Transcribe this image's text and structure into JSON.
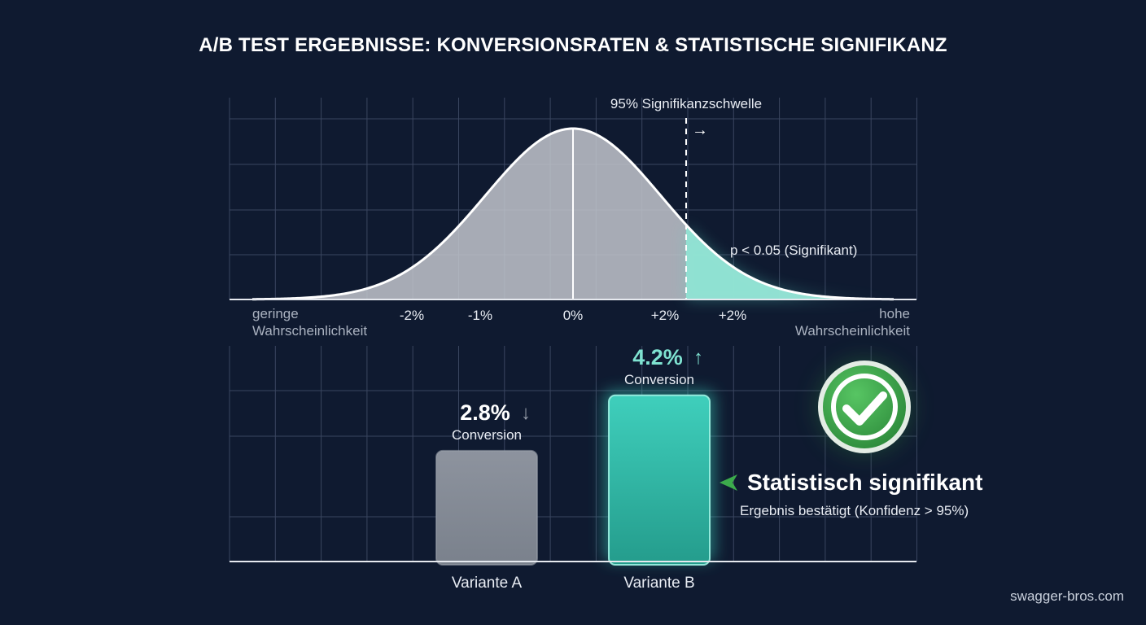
{
  "title": "A/B TEST ERGEBNISSE: KONVERSIONSRATEN & STATISTISCHE SIGNIFIKANZ",
  "watermark": "swagger-bros.com",
  "colors": {
    "background": "#0f1a30",
    "grid": "#3a4660",
    "curve_fill": "#c2c5cc",
    "significant": "#5ee0c8",
    "variant_a": "#858c97",
    "variant_b": "#36c3b1",
    "check": "#3cab4c"
  },
  "chart_data": [
    {
      "type": "area",
      "series": [
        {
          "name": "",
          "distribution": "normal",
          "mean": 0
        }
      ],
      "x_tick_labels": [
        "-2%",
        "-1%",
        "0%",
        "+2%",
        "+2%"
      ],
      "x_left_label": [
        "geringe",
        "Wahrscheinlichkeit"
      ],
      "x_right_label": [
        "hohe",
        "Wahrscheinlichkeit"
      ],
      "threshold_label": "95% Signifikanzschwelle",
      "threshold_arrow": "→",
      "region_label": "p < 0.05 (Signifikant)",
      "grid": true
    },
    {
      "type": "bar",
      "categories": [
        "Variante A",
        "Variante B"
      ],
      "values": [
        2.8,
        4.2
      ],
      "unit": "%",
      "ylim": [
        0,
        5.45
      ],
      "data_labels": [
        {
          "value": "2.8%",
          "arrow": "↓",
          "sub": "Conversion"
        },
        {
          "value": "4.2%",
          "arrow": "↑",
          "sub": "Conversion"
        }
      ],
      "grid": true
    }
  ],
  "callout": {
    "icon": "check-circle-icon",
    "heading": "Statistisch signifikant",
    "subtext": "Ergebnis bestätigt (Konfidenz > 95%)"
  }
}
